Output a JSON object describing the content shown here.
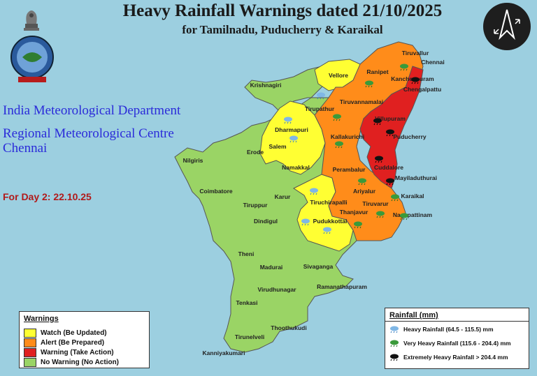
{
  "title": "Heavy Rainfall Warnings dated 21/10/2025",
  "subtitle": "for Tamilnadu, Puducherry & Karaikal",
  "org": {
    "line1": "India Meteorological Department",
    "line2": "Regional Meteorological Centre",
    "line3": "Chennai"
  },
  "day_label": "For Day 2: 22.10.25",
  "colors": {
    "watch": "#ffff33",
    "alert": "#ff8c1a",
    "warning": "#e02020",
    "no_warning": "#9ad465",
    "sea": "#9ccfe0"
  },
  "warnings_legend": {
    "title": "Warnings",
    "items": [
      {
        "label": "Watch (Be Updated)",
        "color": "#ffff33"
      },
      {
        "label": "Alert (Be Prepared)",
        "color": "#ff8c1a"
      },
      {
        "label": "Warning (Take Action)",
        "color": "#e02020"
      },
      {
        "label": "No Warning (No Action)",
        "color": "#9ad465"
      }
    ]
  },
  "rainfall_legend": {
    "title": "Rainfall (mm)",
    "items": [
      {
        "label": "Heavy Rainfall (64.5 - 115.5) mm",
        "icon": "cloud-blue-rain-icon"
      },
      {
        "label": "Very Heavy Rainfall (115.6 - 204.4) mm",
        "icon": "cloud-green-rain-icon"
      },
      {
        "label": "Extremely Heavy Rainfall > 204.4 mm",
        "icon": "cloud-black-rain-icon"
      }
    ]
  },
  "districts": {
    "tiruvallur": "Tiruvallur",
    "chennai": "Chennai",
    "ranipet": "Ranipet",
    "vellore": "Vellore",
    "kancheepuram": "Kancheepuram",
    "chengalpattu": "Chengalpattu",
    "krishnagiri": "Krishnagiri",
    "tirupathur": "Tirupathur",
    "tiruvannamalai": "Tiruvannamalai",
    "villupuram": "Villupuram",
    "dharmapuri": "Dharmapuri",
    "puducherry": "Puducherry",
    "kallakurichi": "Kallakurichi",
    "salem": "Salem",
    "erode": "Erode",
    "nilgiris": "Nilgiris",
    "namakkal": "Namakkal",
    "perambalur": "Perambalur",
    "cuddalore": "Cuddalore",
    "mayiladuthurai": "Mayiladuthurai",
    "coimbatore": "Coimbatore",
    "karur": "Karur",
    "ariyalur": "Ariyalur",
    "karaikal": "Karaikal",
    "tiruppur": "Tiruppur",
    "tiruchirapalli": "Tiruchirapalli",
    "tiruvarur": "Tiruvarur",
    "thanjavur": "Thanjavur",
    "dindigul": "Dindigul",
    "nagapattinam": "Nagapattinam",
    "pudukkottai": "Pudukkottai",
    "theni": "Theni",
    "madurai": "Madurai",
    "sivaganga": "Sivaganga",
    "ramanathapuram": "Ramanathapuram",
    "virudhunagar": "Virudhunagar",
    "tenkasi": "Tenkasi",
    "thoothukudi": "Thoothukudi",
    "tirunelveli": "Tirunelveli",
    "kanniyakumari": "Kanniyakumari"
  }
}
